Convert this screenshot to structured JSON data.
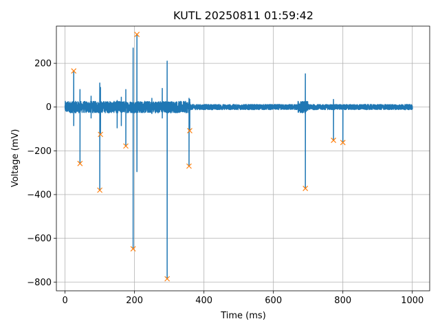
{
  "chart_data": {
    "type": "line",
    "title": "KUTL 20250811 01:59:42",
    "xlabel": "Time (ms)",
    "ylabel": "Voltage (mV)",
    "xlim": [
      -25,
      1050
    ],
    "ylim": [
      -840,
      370
    ],
    "xticks": [
      0,
      200,
      400,
      600,
      800,
      1000
    ],
    "yticks": [
      -800,
      -600,
      -400,
      -200,
      0,
      200
    ],
    "grid": true,
    "series": [
      {
        "type": "line",
        "color": "#1f77b4",
        "x_range": [
          0,
          1000
        ],
        "baseline_noise_mV": 12,
        "spikes": [
          {
            "x": 25,
            "min": -85,
            "max": 165
          },
          {
            "x": 43,
            "min": -258,
            "max": 80
          },
          {
            "x": 75,
            "min": -50,
            "max": 50
          },
          {
            "x": 100,
            "min": -380,
            "max": 110
          },
          {
            "x": 102,
            "min": -125,
            "max": 90
          },
          {
            "x": 150,
            "min": -95,
            "max": 30
          },
          {
            "x": 162,
            "min": -85,
            "max": 45
          },
          {
            "x": 175,
            "min": -178,
            "max": 80
          },
          {
            "x": 196,
            "min": -648,
            "max": 270
          },
          {
            "x": 207,
            "min": -295,
            "max": 332
          },
          {
            "x": 250,
            "min": -30,
            "max": 40
          },
          {
            "x": 280,
            "min": -50,
            "max": 85
          },
          {
            "x": 294,
            "min": -785,
            "max": 210
          },
          {
            "x": 357,
            "min": -270,
            "max": 40
          },
          {
            "x": 359,
            "min": -108,
            "max": 35
          },
          {
            "x": 692,
            "min": -372,
            "max": 152
          },
          {
            "x": 773,
            "min": -152,
            "max": 35
          },
          {
            "x": 800,
            "min": -162,
            "max": 10
          }
        ]
      },
      {
        "type": "scatter",
        "marker": "x",
        "color": "#ff7f0e",
        "points": [
          {
            "x": 25,
            "y": 165
          },
          {
            "x": 43,
            "y": -258
          },
          {
            "x": 100,
            "y": -380
          },
          {
            "x": 102,
            "y": -125
          },
          {
            "x": 175,
            "y": -178
          },
          {
            "x": 196,
            "y": -648
          },
          {
            "x": 207,
            "y": 332
          },
          {
            "x": 294,
            "y": -785
          },
          {
            "x": 357,
            "y": -270
          },
          {
            "x": 359,
            "y": -108
          },
          {
            "x": 692,
            "y": -372
          },
          {
            "x": 773,
            "y": -152
          },
          {
            "x": 800,
            "y": -162
          }
        ]
      }
    ]
  }
}
